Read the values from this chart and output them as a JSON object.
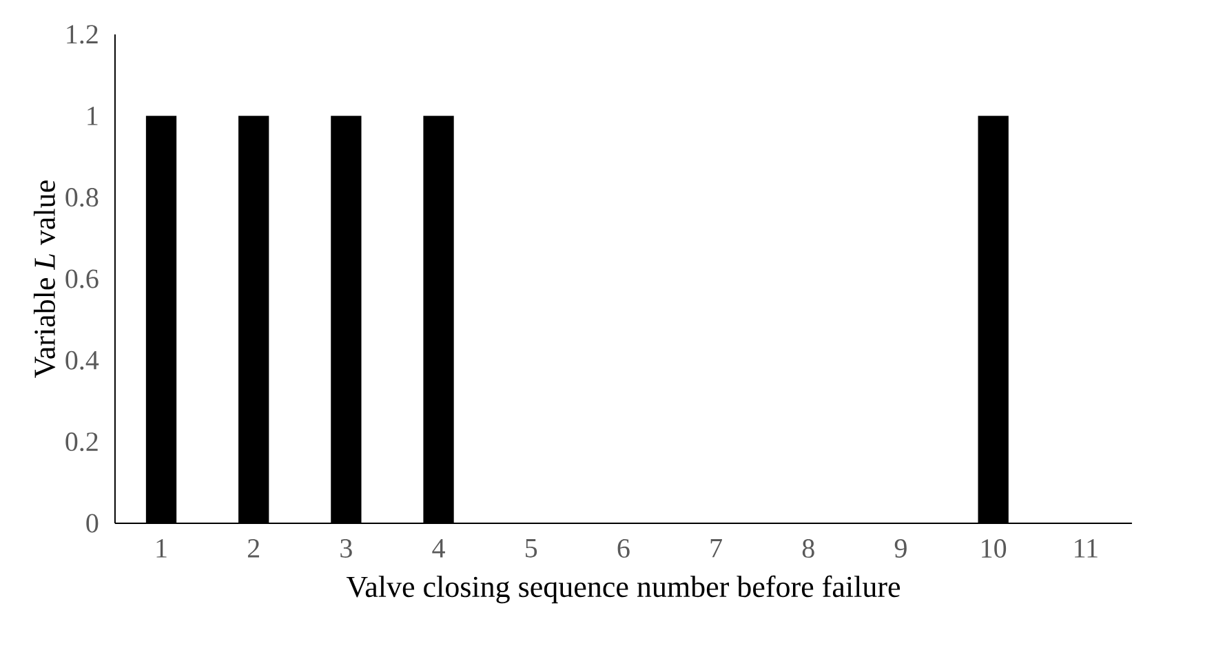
{
  "chart_data": {
    "type": "bar",
    "xlabel": "Valve closing sequence number before failure",
    "ylabel": "Variable *L* value",
    "categories": [
      "1",
      "2",
      "3",
      "4",
      "5",
      "6",
      "7",
      "8",
      "9",
      "10",
      "11"
    ],
    "values": [
      1,
      1,
      1,
      1,
      0,
      0,
      0,
      0,
      0,
      1,
      0
    ],
    "color": "#000000",
    "ylim": [
      0,
      1.2
    ],
    "yticks": [
      0,
      0.2,
      0.4,
      0.6,
      0.8,
      1,
      1.2
    ]
  }
}
